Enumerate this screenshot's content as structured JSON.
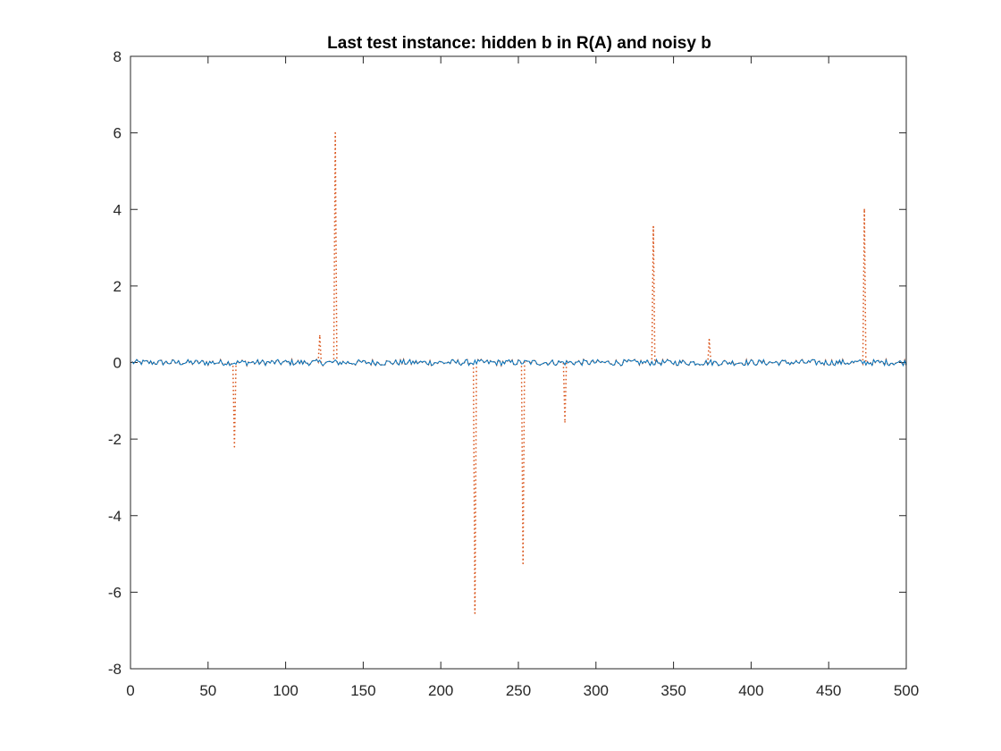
{
  "chart_data": {
    "type": "line",
    "title": "Last test instance: hidden b in R(A) and noisy b",
    "xlabel": "",
    "ylabel": "",
    "xlim": [
      0,
      500
    ],
    "ylim": [
      -8,
      8
    ],
    "xticks": [
      0,
      50,
      100,
      150,
      200,
      250,
      300,
      350,
      400,
      450,
      500
    ],
    "yticks": [
      -8,
      -6,
      -4,
      -2,
      0,
      2,
      4,
      6,
      8
    ],
    "grid": false,
    "legend": "none",
    "series": [
      {
        "style": "dotted",
        "color": "#D95319",
        "description_spikes": "noisy b: hidden b plus sparse outliers",
        "spikes": [
          {
            "x": 67,
            "y": -2.2
          },
          {
            "x": 122,
            "y": 0.7
          },
          {
            "x": 132,
            "y": 6.0
          },
          {
            "x": 222,
            "y": -6.55
          },
          {
            "x": 253,
            "y": -5.25
          },
          {
            "x": 280,
            "y": -1.55
          },
          {
            "x": 337,
            "y": 3.55
          },
          {
            "x": 373,
            "y": 0.6
          },
          {
            "x": 473,
            "y": 4.0
          }
        ]
      },
      {
        "style": "solid",
        "color": "#0072BD",
        "baseline": 0,
        "amplitude": 0.08
      }
    ]
  }
}
